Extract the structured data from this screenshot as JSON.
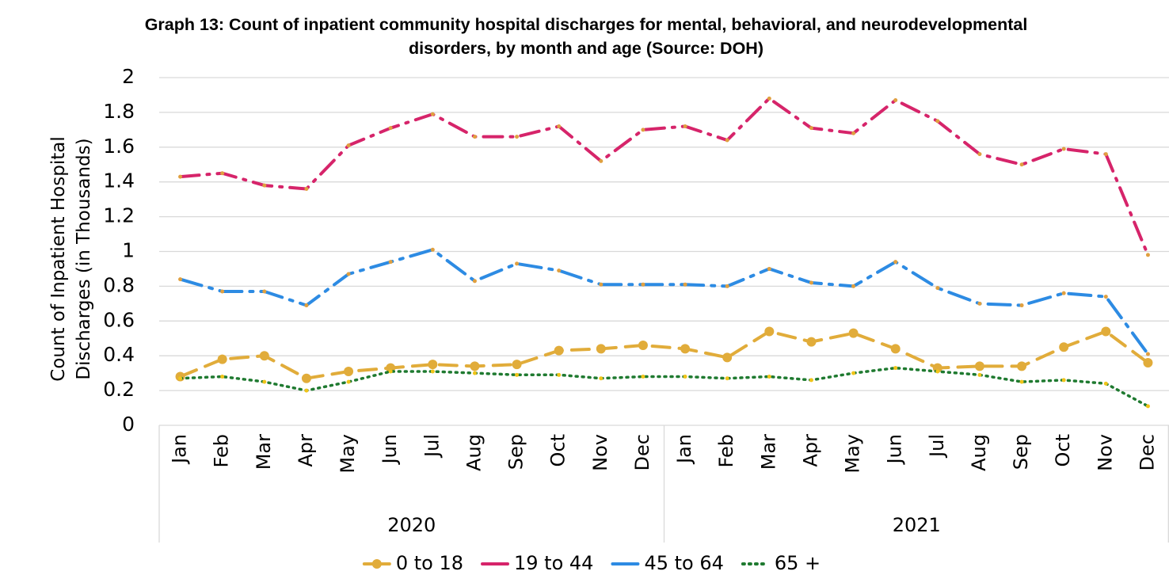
{
  "chart_data": {
    "type": "line",
    "title": "Graph 13: Count of inpatient community hospital discharges for mental, behavioral, and neurodevelopmental disorders, by month and age (Source: DOH)",
    "y_label": "Count of Inpatient Hospital Discharges (in Thousands)",
    "categories": [
      "Jan",
      "Feb",
      "Mar",
      "Apr",
      "May",
      "Jun",
      "Jul",
      "Aug",
      "Sep",
      "Oct",
      "Nov",
      "Dec",
      "Jan",
      "Feb",
      "Mar",
      "Apr",
      "May",
      "Jun",
      "Jul",
      "Aug",
      "Sep",
      "Oct",
      "Nov",
      "Dec"
    ],
    "x_groups": [
      "2020",
      "2021"
    ],
    "series": [
      {
        "name": "0 to 18",
        "color": "#e1ac3a",
        "values": [
          0.28,
          0.38,
          0.4,
          0.27,
          0.31,
          0.33,
          0.35,
          0.34,
          0.35,
          0.43,
          0.44,
          0.46,
          0.44,
          0.39,
          0.54,
          0.48,
          0.53,
          0.44,
          0.33,
          0.34,
          0.34,
          0.45,
          0.54,
          0.36
        ]
      },
      {
        "name": "19 to 44",
        "color": "#d6246a",
        "values": [
          1.43,
          1.45,
          1.38,
          1.36,
          1.61,
          1.71,
          1.79,
          1.66,
          1.66,
          1.72,
          1.52,
          1.7,
          1.72,
          1.64,
          1.88,
          1.71,
          1.68,
          1.87,
          1.75,
          1.56,
          1.5,
          1.59,
          1.56,
          0.98
        ]
      },
      {
        "name": "45 to 64",
        "color": "#2d8be3",
        "values": [
          0.84,
          0.77,
          0.77,
          0.69,
          0.87,
          0.94,
          1.01,
          0.83,
          0.93,
          0.89,
          0.81,
          0.81,
          0.81,
          0.8,
          0.9,
          0.82,
          0.8,
          0.94,
          0.79,
          0.7,
          0.69,
          0.76,
          0.74,
          0.41
        ]
      },
      {
        "name": "65 +",
        "color": "#1f7a30",
        "values": [
          0.27,
          0.28,
          0.25,
          0.2,
          0.25,
          0.31,
          0.31,
          0.3,
          0.29,
          0.29,
          0.27,
          0.28,
          0.28,
          0.27,
          0.28,
          0.26,
          0.3,
          0.33,
          0.31,
          0.29,
          0.25,
          0.26,
          0.24,
          0.11
        ]
      }
    ],
    "ylim": [
      0,
      2
    ],
    "yticks": [
      0,
      0.2,
      0.4,
      0.6,
      0.8,
      1,
      1.2,
      1.4,
      1.6,
      1.8,
      2
    ],
    "grid": true,
    "legend": "bottom"
  }
}
